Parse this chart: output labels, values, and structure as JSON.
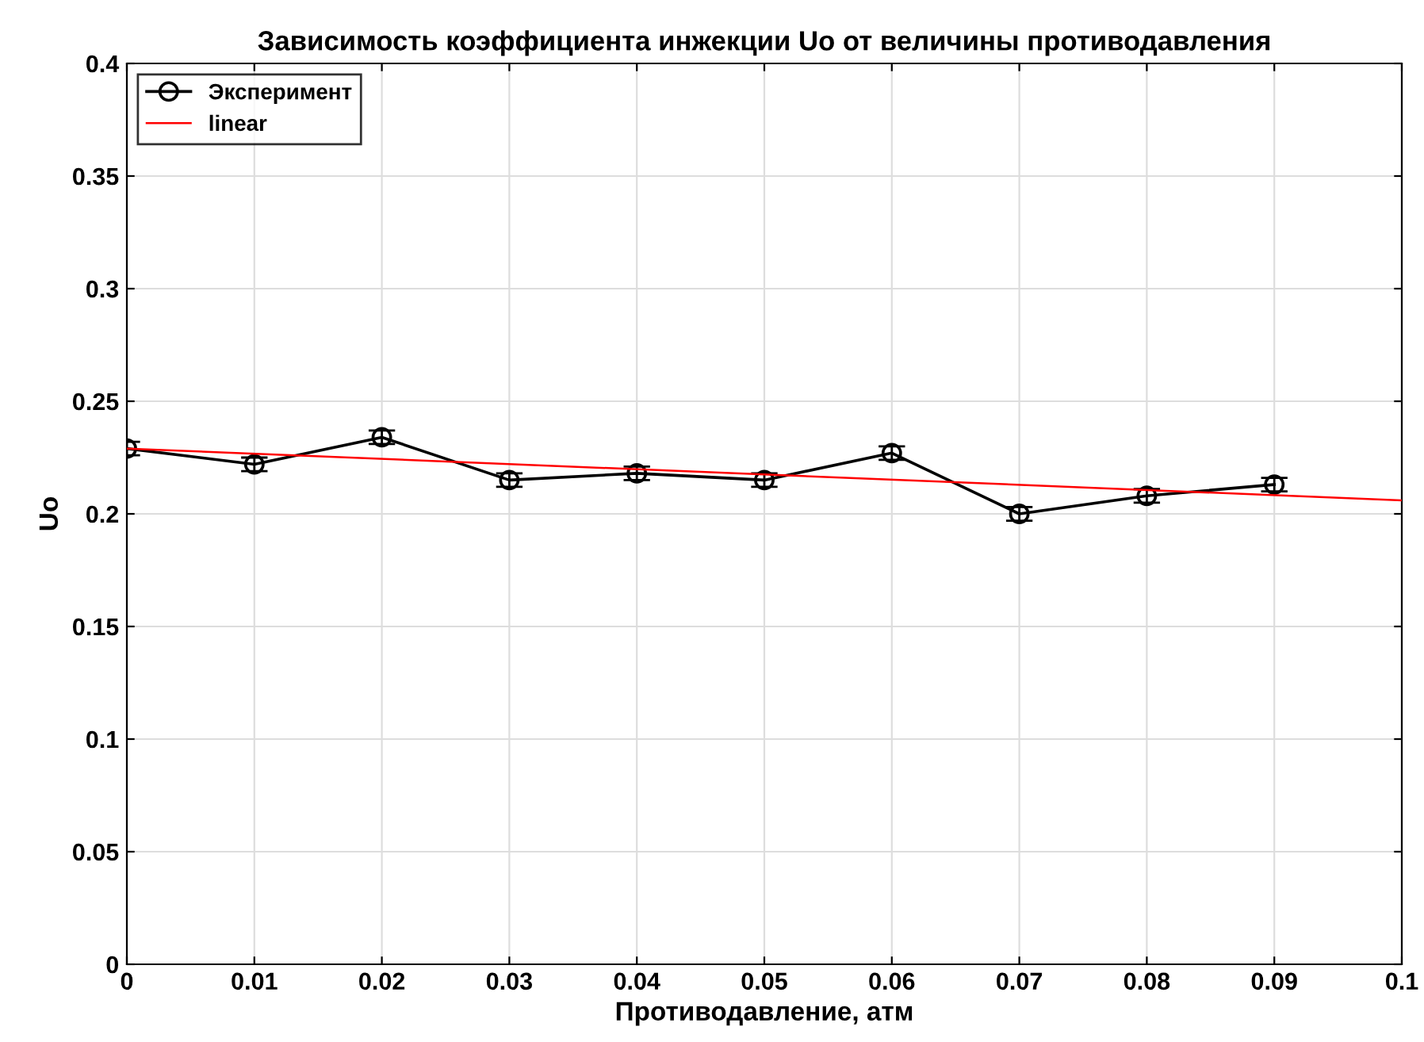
{
  "chart_data": {
    "type": "line",
    "title": "Зависимость коэффициента инжекции Uo от величины противодавления",
    "xlabel": "Противодавление, атм",
    "ylabel": "Uo",
    "x": [
      0,
      0.01,
      0.02,
      0.03,
      0.04,
      0.05,
      0.06,
      0.07,
      0.08,
      0.09
    ],
    "series": [
      {
        "name": "Эксперимент",
        "color": "#000000",
        "marker": "circle",
        "values": [
          0.229,
          0.222,
          0.234,
          0.215,
          0.218,
          0.215,
          0.227,
          0.2,
          0.208,
          0.213
        ],
        "errors": [
          0.003,
          0.003,
          0.003,
          0.003,
          0.003,
          0.003,
          0.003,
          0.003,
          0.003,
          0.003
        ]
      },
      {
        "name": "linear",
        "color": "#ff0000",
        "marker": "none",
        "x": [
          0,
          0.1
        ],
        "values": [
          0.229,
          0.206
        ]
      }
    ],
    "xlim": [
      0,
      0.1
    ],
    "xticks": [
      0,
      0.01,
      0.02,
      0.03,
      0.04,
      0.05,
      0.06,
      0.07,
      0.08,
      0.09,
      0.1
    ],
    "ylim": [
      0,
      0.4
    ],
    "yticks": [
      0,
      0.05,
      0.1,
      0.15,
      0.2,
      0.25,
      0.3,
      0.35,
      0.4
    ],
    "grid": true,
    "legend": "top left"
  }
}
